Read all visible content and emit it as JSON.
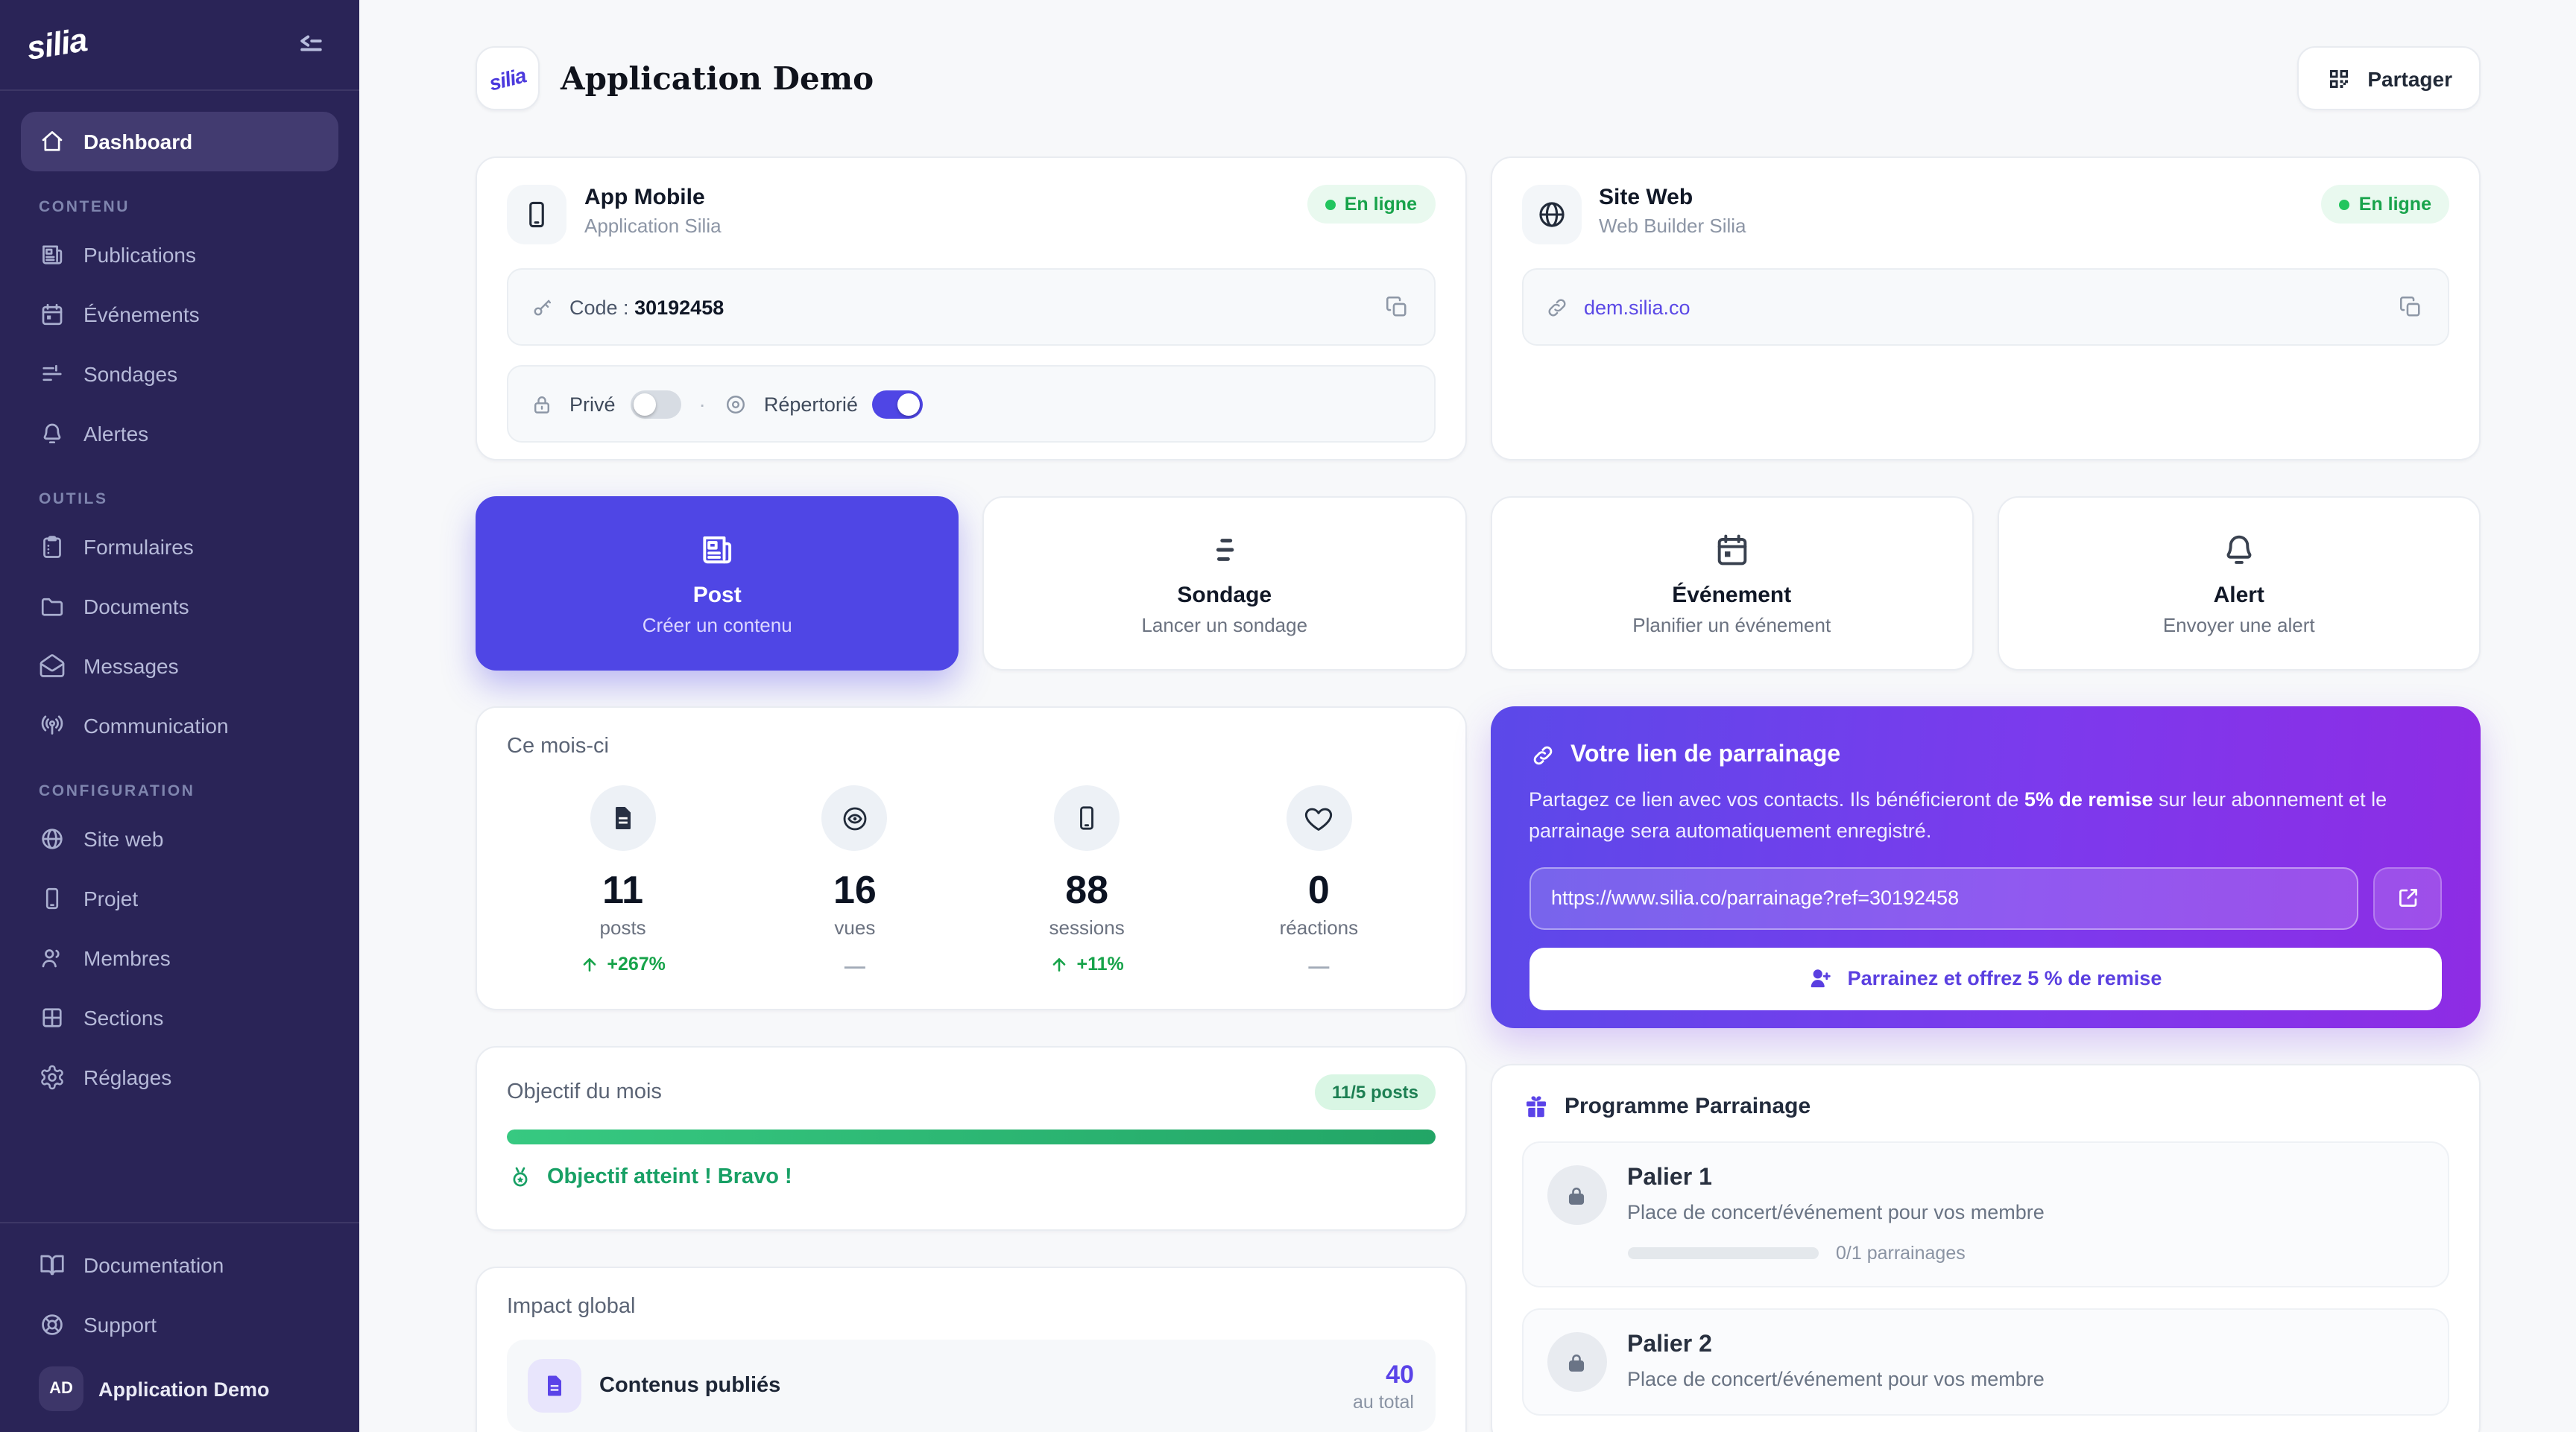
{
  "colors": {
    "accent": "#4f46e5",
    "gradient_start": "#5b49e9",
    "gradient_end": "#8e2ce4",
    "success": "#16a34a",
    "sidebar_bg": "#2a2457"
  },
  "sidebar": {
    "logo": "silia",
    "dashboard": {
      "label": "Dashboard",
      "icon": "home"
    },
    "sections": [
      {
        "label": "CONTENU",
        "items": [
          {
            "label": "Publications",
            "icon": "newspaper"
          },
          {
            "label": "Événements",
            "icon": "calendar"
          },
          {
            "label": "Sondages",
            "icon": "sliders"
          },
          {
            "label": "Alertes",
            "icon": "bell"
          }
        ]
      },
      {
        "label": "OUTILS",
        "items": [
          {
            "label": "Formulaires",
            "icon": "clipboard"
          },
          {
            "label": "Documents",
            "icon": "folder"
          },
          {
            "label": "Messages",
            "icon": "mail"
          },
          {
            "label": "Communication",
            "icon": "broadcast"
          }
        ]
      },
      {
        "label": "CONFIGURATION",
        "items": [
          {
            "label": "Site web",
            "icon": "globe"
          },
          {
            "label": "Projet",
            "icon": "smartphone"
          },
          {
            "label": "Membres",
            "icon": "users"
          },
          {
            "label": "Sections",
            "icon": "grid"
          },
          {
            "label": "Réglages",
            "icon": "gear"
          }
        ]
      }
    ],
    "footer_items": [
      {
        "label": "Documentation",
        "icon": "book"
      },
      {
        "label": "Support",
        "icon": "life-buoy"
      }
    ],
    "workspace": {
      "initials": "AD",
      "name": "Application Demo"
    }
  },
  "header": {
    "logo_text": "silia",
    "title": "Application Demo",
    "share_label": "Partager"
  },
  "app_card": {
    "title": "App Mobile",
    "subtitle": "Application Silia",
    "status": "En ligne",
    "code_label": "Code :",
    "code_value": "30192458",
    "private_label": "Privé",
    "private_on": false,
    "separator": "·",
    "listed_label": "Répertorié",
    "listed_on": true
  },
  "site_card": {
    "title": "Site Web",
    "subtitle": "Web Builder Silia",
    "status": "En ligne",
    "url": "dem.silia.co"
  },
  "actions": [
    {
      "title": "Post",
      "subtitle": "Créer un contenu",
      "icon": "newspaper",
      "active": true
    },
    {
      "title": "Sondage",
      "subtitle": "Lancer un sondage",
      "icon": "sliders",
      "active": false
    },
    {
      "title": "Événement",
      "subtitle": "Planifier un événement",
      "icon": "calendar",
      "active": false
    },
    {
      "title": "Alert",
      "subtitle": "Envoyer une alert",
      "icon": "bell",
      "active": false
    }
  ],
  "month_stats": {
    "title": "Ce mois-ci",
    "stats": [
      {
        "icon": "document",
        "value": "11",
        "label": "posts",
        "delta": "+267%",
        "trend": "up"
      },
      {
        "icon": "eye",
        "value": "16",
        "label": "vues",
        "delta": "—",
        "trend": "flat"
      },
      {
        "icon": "smartphone",
        "value": "88",
        "label": "sessions",
        "delta": "+11%",
        "trend": "up"
      },
      {
        "icon": "heart",
        "value": "0",
        "label": "réactions",
        "delta": "—",
        "trend": "flat"
      }
    ]
  },
  "referral": {
    "title": "Votre lien de parrainage",
    "desc_pre": "Partagez ce lien avec vos contacts. Ils bénéficieront de ",
    "desc_bold": "5% de remise",
    "desc_post": " sur leur abonnement et le parrainage sera automatiquement enregistré.",
    "link": "https://www.silia.co/parrainage?ref=30192458",
    "button_label": "Parrainez et offrez 5 % de remise"
  },
  "goal": {
    "title": "Objectif du mois",
    "badge": "11/5 posts",
    "progress_percent": 100,
    "message": "Objectif atteint ! Bravo !"
  },
  "impact": {
    "title": "Impact global",
    "rows": [
      {
        "icon": "document",
        "label": "Contenus publiés",
        "value": "40",
        "caption": "au total"
      }
    ]
  },
  "referral_program": {
    "title": "Programme Parrainage",
    "icon": "gift",
    "tiers": [
      {
        "title": "Palier 1",
        "desc": "Place de concert/événement pour vos membre",
        "progress_label": "0/1 parrainages",
        "progress_percent": 0
      },
      {
        "title": "Palier 2",
        "desc": "Place de concert/événement pour vos membre"
      }
    ]
  }
}
